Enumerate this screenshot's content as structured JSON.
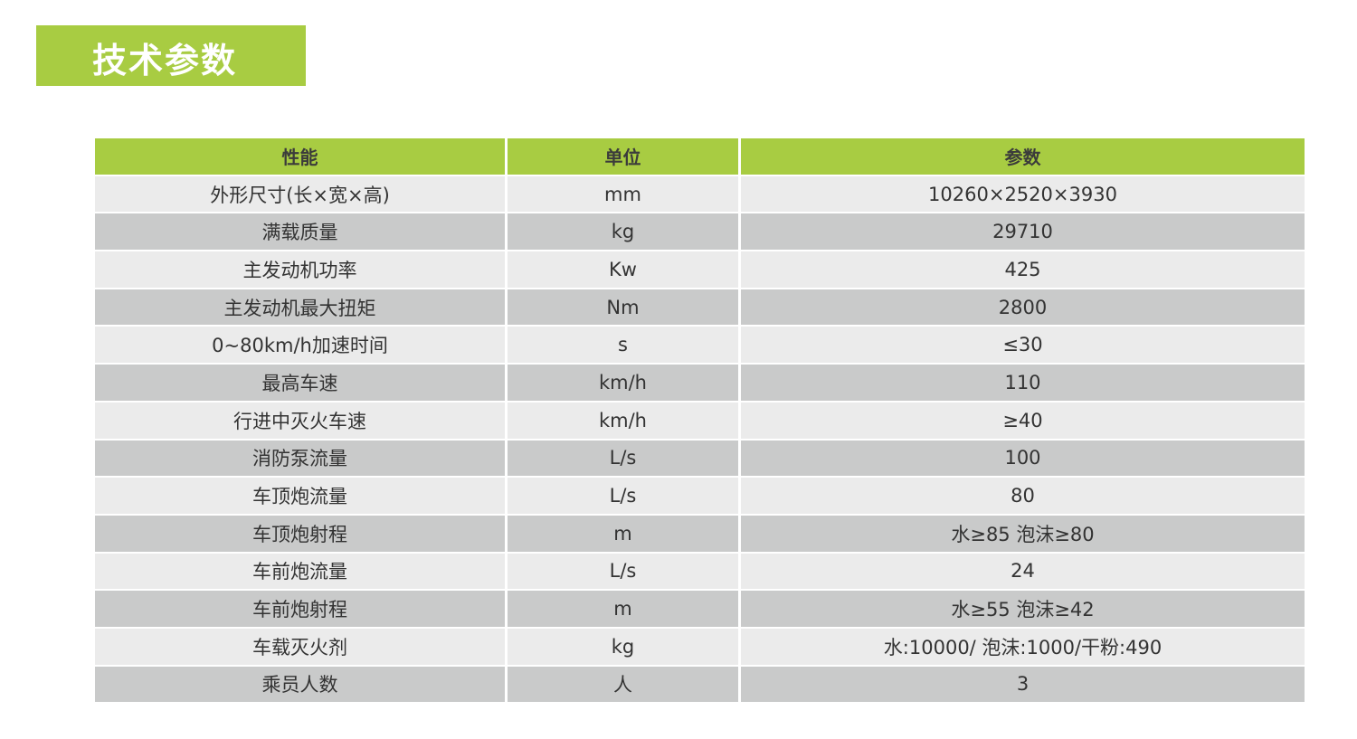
{
  "title": "技术参数",
  "colors": {
    "accent": "#a8cc42",
    "row_light": "#ebebeb",
    "row_dark": "#c9caca"
  },
  "table": {
    "headers": [
      "性能",
      "单位",
      "参数"
    ],
    "rows": [
      [
        "外形尺寸(长×宽×高)",
        "mm",
        "10260×2520×3930"
      ],
      [
        "满载质量",
        "kg",
        "29710"
      ],
      [
        "主发动机功率",
        "Kw",
        "425"
      ],
      [
        "主发动机最大扭矩",
        "Nm",
        "2800"
      ],
      [
        "0~80km/h加速时间",
        "s",
        "≤30"
      ],
      [
        "最高车速",
        "km/h",
        "110"
      ],
      [
        "行进中灭火车速",
        "km/h",
        "≥40"
      ],
      [
        "消防泵流量",
        "L/s",
        "100"
      ],
      [
        "车顶炮流量",
        "L/s",
        "80"
      ],
      [
        "车顶炮射程",
        "m",
        "水≥85 泡沫≥80"
      ],
      [
        "车前炮流量",
        "L/s",
        "24"
      ],
      [
        "车前炮射程",
        "m",
        "水≥55 泡沫≥42"
      ],
      [
        "车载灭火剂",
        "kg",
        "水:10000/ 泡沫:1000/干粉:490"
      ],
      [
        "乘员人数",
        "人",
        "3"
      ]
    ]
  }
}
